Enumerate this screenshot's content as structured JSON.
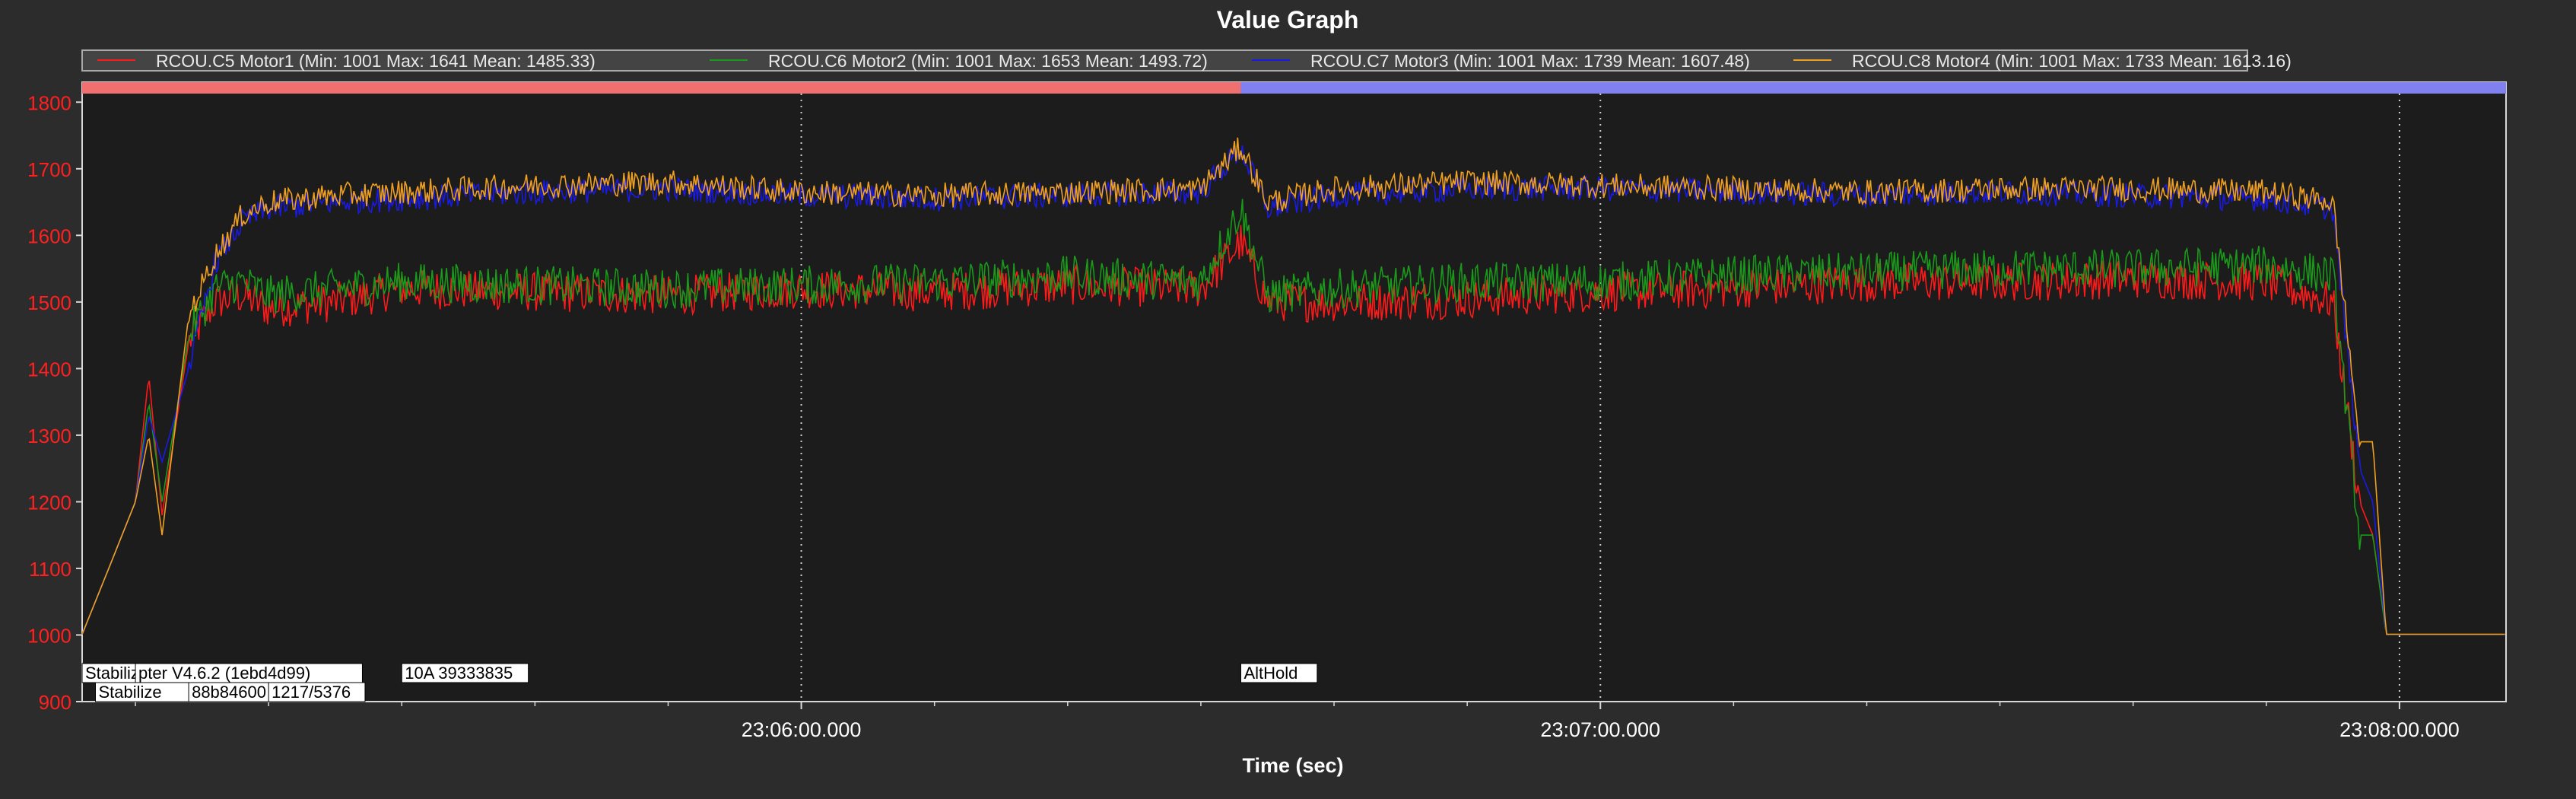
{
  "chart_data": {
    "type": "line",
    "title": "Value Graph",
    "xlabel": "Time (sec)",
    "ylabel": "",
    "ylim": [
      900,
      1830
    ],
    "xlim": [
      "23:05:06",
      "23:08:08"
    ],
    "yticks": [
      "900",
      "1000",
      "1100",
      "1200",
      "1300",
      "1400",
      "1500",
      "1600",
      "1700",
      "1800"
    ],
    "xticks": [
      "23:06:00.000",
      "23:07:00.000",
      "23:08:00.000"
    ],
    "grid": true,
    "legend_position": "top",
    "series": [
      {
        "name": "RCOU.C5 Motor1 (Min: 1001 Max: 1641 Mean: 1485.33)",
        "color": "#ff1a1a",
        "x": [
          "23:05:06",
          "23:05:08",
          "23:05:10",
          "23:05:11",
          "23:05:12",
          "23:05:14",
          "23:05:16",
          "23:05:18",
          "23:05:20",
          "23:05:25",
          "23:05:30",
          "23:05:40",
          "23:05:50",
          "23:06:00",
          "23:06:10",
          "23:06:20",
          "23:06:30",
          "23:06:33",
          "23:06:35",
          "23:06:40",
          "23:06:50",
          "23:07:00",
          "23:07:10",
          "23:07:20",
          "23:07:30",
          "23:07:40",
          "23:07:50",
          "23:07:55",
          "23:07:57",
          "23:07:58",
          "23:07:59",
          "23:08:08"
        ],
        "values": [
          1001,
          1100,
          1200,
          1390,
          1180,
          1440,
          1500,
          1510,
          1490,
          1500,
          1520,
          1515,
          1510,
          1520,
          1515,
          1525,
          1520,
          1590,
          1500,
          1500,
          1505,
          1515,
          1520,
          1530,
          1530,
          1535,
          1530,
          1500,
          1200,
          1150,
          1001,
          1001
        ]
      },
      {
        "name": "RCOU.C6 Motor2 (Min: 1001 Max: 1653 Mean: 1493.72)",
        "color": "#1a9a1a",
        "x": [
          "23:05:06",
          "23:05:08",
          "23:05:10",
          "23:05:11",
          "23:05:12",
          "23:05:14",
          "23:05:16",
          "23:05:18",
          "23:05:20",
          "23:05:25",
          "23:05:30",
          "23:05:40",
          "23:05:50",
          "23:06:00",
          "23:06:10",
          "23:06:20",
          "23:06:30",
          "23:06:33",
          "23:06:35",
          "23:06:40",
          "23:06:50",
          "23:07:00",
          "23:07:10",
          "23:07:20",
          "23:07:30",
          "23:07:40",
          "23:07:50",
          "23:07:55",
          "23:07:57",
          "23:07:58",
          "23:07:59",
          "23:08:08"
        ],
        "values": [
          1001,
          1100,
          1200,
          1350,
          1200,
          1450,
          1520,
          1530,
          1510,
          1520,
          1530,
          1525,
          1520,
          1525,
          1530,
          1540,
          1530,
          1640,
          1510,
          1520,
          1530,
          1530,
          1540,
          1545,
          1550,
          1550,
          1555,
          1540,
          1150,
          1150,
          1001,
          1001
        ]
      },
      {
        "name": "RCOU.C7 Motor3 (Min: 1001 Max: 1739 Mean: 1607.48)",
        "color": "#1a1ae6",
        "x": [
          "23:05:06",
          "23:05:08",
          "23:05:10",
          "23:05:11",
          "23:05:12",
          "23:05:14",
          "23:05:16",
          "23:05:18",
          "23:05:20",
          "23:05:25",
          "23:05:30",
          "23:05:40",
          "23:05:50",
          "23:06:00",
          "23:06:10",
          "23:06:20",
          "23:06:30",
          "23:06:33",
          "23:06:35",
          "23:06:40",
          "23:06:50",
          "23:07:00",
          "23:07:10",
          "23:07:20",
          "23:07:30",
          "23:07:40",
          "23:07:50",
          "23:07:55",
          "23:07:57",
          "23:07:58",
          "23:07:59",
          "23:08:08"
        ],
        "values": [
          1001,
          1100,
          1200,
          1330,
          1260,
          1400,
          1560,
          1620,
          1640,
          1650,
          1655,
          1665,
          1670,
          1660,
          1655,
          1660,
          1665,
          1730,
          1640,
          1660,
          1670,
          1670,
          1665,
          1660,
          1665,
          1660,
          1655,
          1640,
          1250,
          1200,
          1001,
          1001
        ]
      },
      {
        "name": "RCOU.C8 Motor4 (Min: 1001 Max: 1733 Mean: 1613.16)",
        "color": "#f0a020",
        "x": [
          "23:05:06",
          "23:05:08",
          "23:05:10",
          "23:05:11",
          "23:05:12",
          "23:05:14",
          "23:05:16",
          "23:05:18",
          "23:05:20",
          "23:05:25",
          "23:05:30",
          "23:05:40",
          "23:05:50",
          "23:06:00",
          "23:06:10",
          "23:06:20",
          "23:06:30",
          "23:06:33",
          "23:06:35",
          "23:06:40",
          "23:06:50",
          "23:07:00",
          "23:07:10",
          "23:07:20",
          "23:07:30",
          "23:07:40",
          "23:07:50",
          "23:07:55",
          "23:07:57",
          "23:07:58",
          "23:07:59",
          "23:08:08"
        ],
        "values": [
          1001,
          1100,
          1200,
          1300,
          1150,
          1480,
          1570,
          1630,
          1650,
          1660,
          1665,
          1675,
          1680,
          1665,
          1660,
          1665,
          1670,
          1733,
          1650,
          1670,
          1680,
          1675,
          1670,
          1665,
          1670,
          1670,
          1665,
          1650,
          1290,
          1290,
          1001,
          1001
        ]
      }
    ],
    "mode_bar": [
      {
        "from": "23:05:06",
        "to": "23:06:33",
        "color": "#f07070"
      },
      {
        "from": "23:06:33",
        "to": "23:08:08",
        "color": "#8080f0"
      }
    ],
    "annotations": [
      {
        "text": "Stabilize",
        "x": "23:05:06",
        "row": 1
      },
      {
        "text": "pter V4.6.2 (1ebd4d99)",
        "x": "23:05:10",
        "row": 1
      },
      {
        "text": "10A 39333835",
        "x": "23:05:30",
        "row": 1
      },
      {
        "text": "Stabilize",
        "x": "23:05:07",
        "row": 2
      },
      {
        "text": "88b84600",
        "x": "23:05:14",
        "row": 2
      },
      {
        "text": "1217/5376",
        "x": "23:05:20",
        "row": 2
      },
      {
        "text": "AltHold",
        "x": "23:06:33",
        "row": 1
      }
    ]
  }
}
